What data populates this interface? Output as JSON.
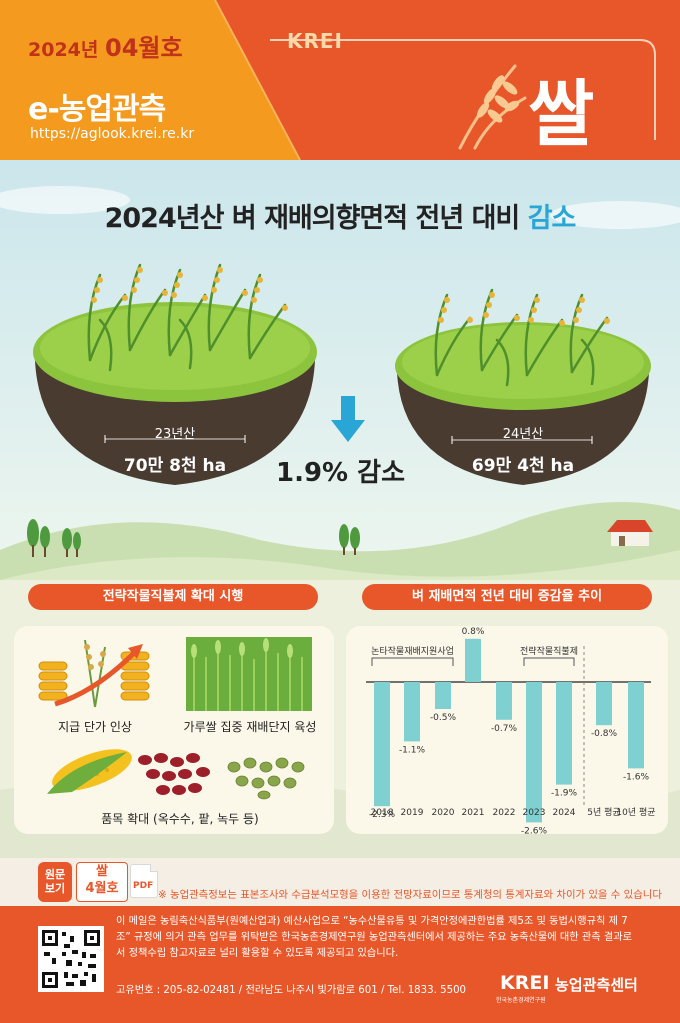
{
  "header": {
    "issue_year": "2024년",
    "issue_month": "04월호",
    "brand_title": "e-농업관측",
    "url": "https://aglook.krei.re.kr",
    "krei_logo": "KREI",
    "commodity": "쌀",
    "colors": {
      "orange": "#f39a1f",
      "red_orange": "#e8572a",
      "accent_blue": "#2aa6d6"
    }
  },
  "headline": {
    "main": "2024년산 벼 재배의향면적 전년 대비 ",
    "accent": "감소"
  },
  "islands": {
    "left": {
      "label": "23년산",
      "value": "70만 8천 ha"
    },
    "right": {
      "label": "24년산",
      "value": "69만 4천 ha"
    },
    "change": "1.9% 감소"
  },
  "policy_panel": {
    "title": "전략작물직불제 확대 시행",
    "items": [
      {
        "label": "지급 단가 인상"
      },
      {
        "label": "가루쌀 집중 재배단지 육성"
      },
      {
        "label": "품목 확대 (옥수수, 팥, 녹두 등)"
      }
    ]
  },
  "trend_panel": {
    "title": "벼 재배면적 전년 대비 증감율 추이"
  },
  "chart_data": {
    "type": "bar",
    "categories": [
      "2018",
      "2019",
      "2020",
      "2021",
      "2022",
      "2023",
      "2024",
      "5년 평균",
      "10년 평균"
    ],
    "values": [
      -2.3,
      -1.1,
      -0.5,
      0.8,
      -0.7,
      -2.6,
      -1.9,
      -0.8,
      -1.6
    ],
    "value_labels": [
      "-2.3%",
      "-1.1%",
      "-0.5%",
      "0.8%",
      "-0.7%",
      "-2.6%",
      "-1.9%",
      "-0.8%",
      "-1.6%"
    ],
    "annotations": [
      {
        "text": "논타작물재배지원사업",
        "from": "2018",
        "to": "2020"
      },
      {
        "text": "전략작물직불제",
        "from": "2023",
        "to": "2024"
      }
    ],
    "color": "#7fd0d0",
    "ylim": [
      -3,
      1
    ]
  },
  "original_link": {
    "label_line1": "원문",
    "label_line2": "보기",
    "commodity": "쌀",
    "month": "4월호",
    "file_type": "PDF"
  },
  "note": "※ 농업관측정보는 표본조사와 수급분석모형을 이용한 전망자료이므로 통계청의 통계자료와 차이가 있을 수 있습니다",
  "footer": {
    "description": "이 메일은 농림축산식품부(원예산업과) 예산사업으로 “농수산물유통 및 가격안정에관한법률 제5조 및 동법시행규칙 제 7조” 규정에 의거 관측 업무를 위탁받은 한국농촌경제연구원 농업관측센터에서 제공하는 주요 농축산물에 대한 관측 결과로서 정책수립 참고자료로 널리 활용할 수 있도록 제공되고 있습니다.",
    "address": "고유번호 : 205-82-02481 / 전라남도 나주시 빛가람로 601 / Tel. 1833. 5500",
    "krei_logo": "KREI",
    "krei_sub": "한국농촌경제연구원",
    "center_name": "농업관측센터"
  }
}
